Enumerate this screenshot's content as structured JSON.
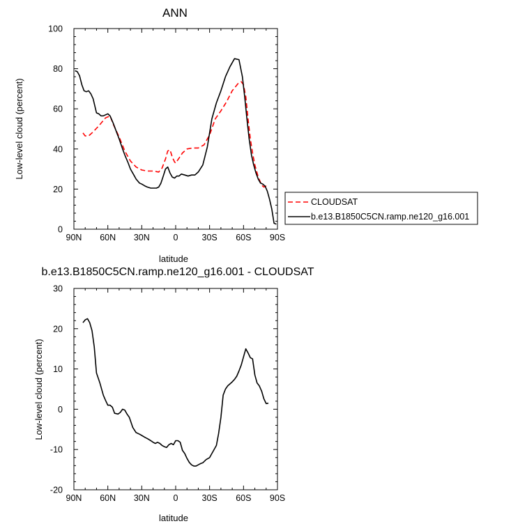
{
  "chart_data": [
    {
      "type": "line",
      "title": "ANN",
      "xlabel": "latitude",
      "ylabel": "Low-level cloud (percent)",
      "xlim": [
        90,
        -90
      ],
      "ylim": [
        0,
        100
      ],
      "xticks": [
        90,
        60,
        30,
        0,
        -30,
        -60,
        -90
      ],
      "xtick_labels": [
        "90N",
        "60N",
        "30N",
        "0",
        "30S",
        "60S",
        "90S"
      ],
      "yticks": [
        0,
        20,
        40,
        60,
        80,
        100
      ],
      "ytick_labels": [
        "0",
        "20",
        "40",
        "60",
        "80",
        "100"
      ],
      "legend": {
        "placement": "right",
        "entries": [
          "CLOUDSAT",
          "b.e13.B1850C5CN.ramp.ne120_g16.001"
        ]
      },
      "series": [
        {
          "name": "CLOUDSAT",
          "color": "#ff0000",
          "style": "dashed",
          "x": [
            82,
            80,
            77,
            73,
            68,
            62,
            58,
            55,
            50,
            45,
            40,
            35,
            30,
            25,
            20,
            15,
            12,
            9,
            7,
            5,
            3,
            1,
            0,
            -3,
            -6,
            -10,
            -15,
            -20,
            -25,
            -30,
            -35,
            -40,
            -45,
            -50,
            -55,
            -58,
            -60,
            -62,
            -64,
            -66,
            -68,
            -70,
            -73,
            -76,
            -78,
            -80,
            -82
          ],
          "values": [
            48,
            46.5,
            46.5,
            48.5,
            51.5,
            55.5,
            56.5,
            52,
            46,
            39,
            34,
            31,
            29.5,
            29,
            29,
            28.5,
            30.5,
            35,
            39,
            39.5,
            36,
            33.5,
            33,
            35.5,
            38,
            40,
            40.5,
            40.5,
            42,
            47,
            55,
            59,
            63.5,
            69,
            72.5,
            73.5,
            72,
            66,
            55,
            45,
            38,
            32,
            26,
            22,
            21,
            21.5,
            21
          ]
        },
        {
          "name": "b.e13.B1850C5CN.ramp.ne120_g16.001",
          "color": "#000000",
          "style": "solid",
          "x": [
            89,
            87,
            85,
            83,
            81,
            79,
            77,
            75,
            73,
            70,
            68,
            66,
            64,
            62,
            60,
            58,
            55,
            52,
            50,
            47,
            45,
            42,
            40,
            37,
            35,
            32,
            30,
            27,
            25,
            22,
            20,
            17,
            15,
            13,
            11,
            9,
            7,
            5,
            3,
            1,
            -1,
            -3,
            -5,
            -8,
            -11,
            -14,
            -17,
            -20,
            -24,
            -28,
            -32,
            -36,
            -40,
            -44,
            -48,
            -52,
            -56,
            -59,
            -61,
            -63,
            -65,
            -67,
            -69,
            -71,
            -73,
            -75,
            -77,
            -79,
            -81,
            -83,
            -85,
            -87,
            -89
          ],
          "values": [
            79,
            78.5,
            76.5,
            72,
            69,
            68.5,
            69,
            67.5,
            65,
            58,
            57.5,
            56.5,
            56.5,
            57,
            57.5,
            56.5,
            52.5,
            48,
            45,
            40,
            37,
            33,
            30,
            27,
            25,
            23,
            22.5,
            21.5,
            21,
            20.5,
            20.5,
            20.5,
            21,
            23,
            26.5,
            30,
            31,
            28,
            26,
            25.5,
            26.5,
            26.5,
            27.5,
            27,
            26.5,
            27,
            27,
            28.5,
            32,
            41,
            55,
            63,
            69,
            76,
            81,
            85,
            84.5,
            76,
            66,
            55,
            45,
            37,
            32,
            28,
            25,
            23,
            22.5,
            21.5,
            19,
            15,
            10,
            3,
            2.5
          ]
        }
      ]
    },
    {
      "type": "line",
      "title": "b.e13.B1850C5CN.ramp.ne120_g16.001 - CLOUDSAT",
      "xlabel": "latitude",
      "ylabel": "Low-level cloud (percent)",
      "xlim": [
        90,
        -90
      ],
      "ylim": [
        -20,
        30
      ],
      "xticks": [
        90,
        60,
        30,
        0,
        -30,
        -60,
        -90
      ],
      "xtick_labels": [
        "90N",
        "60N",
        "30N",
        "0",
        "30S",
        "60S",
        "90S"
      ],
      "yticks": [
        -20,
        -10,
        0,
        10,
        20,
        30
      ],
      "ytick_labels": [
        "-20",
        "-10",
        "0",
        "10",
        "20",
        "30"
      ],
      "series": [
        {
          "name": "b.e13.B1850C5CN.ramp.ne120_g16.001 - CLOUDSAT",
          "color": "#000000",
          "style": "solid",
          "x": [
            82,
            80,
            78,
            76,
            74,
            72,
            70,
            67,
            64,
            62,
            60,
            58,
            56,
            54,
            51,
            49,
            47,
            45,
            43,
            41,
            38,
            35,
            32,
            30,
            27,
            25,
            22,
            20,
            18,
            16,
            14,
            12,
            10,
            8,
            6,
            4,
            2,
            0,
            -2,
            -4,
            -6,
            -8,
            -10,
            -12,
            -14,
            -16,
            -18,
            -20,
            -22,
            -24,
            -27,
            -30,
            -33,
            -36,
            -38,
            -40,
            -42,
            -44,
            -46,
            -48,
            -50,
            -52,
            -54,
            -56,
            -58,
            -60,
            -62,
            -64,
            -66,
            -68,
            -70,
            -72,
            -74,
            -76,
            -78,
            -80,
            -82
          ],
          "values": [
            21.5,
            22.2,
            22.5,
            21.5,
            19.5,
            15.5,
            9,
            6.5,
            3.5,
            2.2,
            1,
            1,
            0.5,
            -1,
            -1.2,
            -0.8,
            0,
            -0.2,
            -1.2,
            -2,
            -4.5,
            -5.8,
            -6.2,
            -6.5,
            -7,
            -7.3,
            -7.8,
            -8.2,
            -8.5,
            -8.2,
            -8.5,
            -9,
            -9.3,
            -9.5,
            -8.8,
            -8.5,
            -8.8,
            -7.8,
            -7.8,
            -8.2,
            -10.2,
            -11,
            -12.2,
            -13.2,
            -13.8,
            -14.1,
            -14.1,
            -13.8,
            -13.5,
            -13.3,
            -12.5,
            -12,
            -10.5,
            -9,
            -6,
            -2,
            3.5,
            5,
            5.8,
            6.3,
            6.8,
            7.4,
            8.2,
            9.5,
            11,
            13,
            15,
            14,
            12.8,
            12.5,
            8.5,
            6.5,
            5.8,
            4.5,
            2.6,
            1.4,
            1.5
          ]
        }
      ]
    }
  ]
}
